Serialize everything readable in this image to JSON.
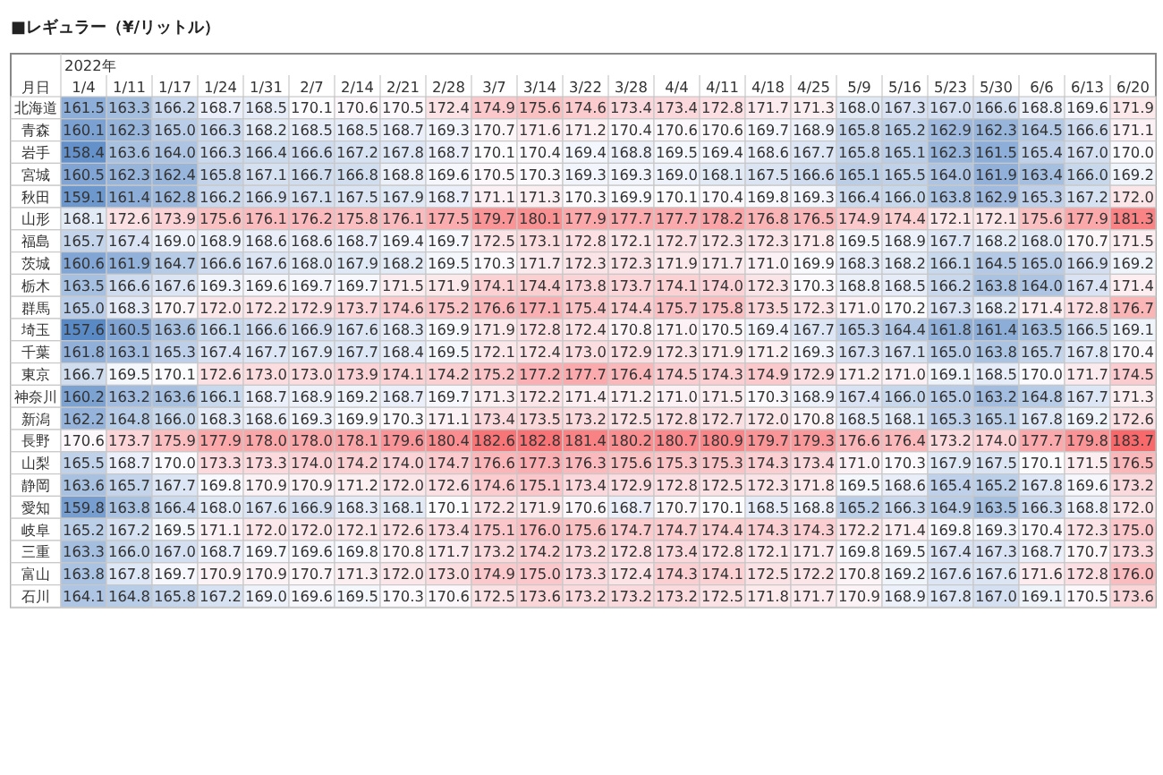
{
  "chart_data": {
    "type": "heatmap",
    "title": "■レギュラー（¥/リットル）",
    "xlabel": "2022年",
    "ylabel": "月日",
    "data_labels": true,
    "categories": [
      "1/4",
      "1/11",
      "1/17",
      "1/24",
      "1/31",
      "2/7",
      "2/14",
      "2/21",
      "2/28",
      "3/7",
      "3/14",
      "3/22",
      "3/28",
      "4/4",
      "4/11",
      "4/18",
      "4/25",
      "5/9",
      "5/16",
      "5/23",
      "5/30",
      "6/6",
      "6/13",
      "6/20"
    ],
    "y_categories": [
      "北海道",
      "青森",
      "岩手",
      "宮城",
      "秋田",
      "山形",
      "福島",
      "茨城",
      "栃木",
      "群馬",
      "埼玉",
      "千葉",
      "東京",
      "神奈川",
      "新潟",
      "長野",
      "山梨",
      "静岡",
      "愛知",
      "岐阜",
      "三重",
      "富山",
      "石川"
    ],
    "cells": [
      [
        161.5,
        163.3,
        166.2,
        168.7,
        168.5,
        170.1,
        170.6,
        170.5,
        172.4,
        174.9,
        175.6,
        174.6,
        173.4,
        173.4,
        172.8,
        171.7,
        171.3,
        168.0,
        167.3,
        167.0,
        166.6,
        168.8,
        169.6,
        171.9
      ],
      [
        160.1,
        162.3,
        165.0,
        166.3,
        168.2,
        168.5,
        168.5,
        168.7,
        169.3,
        170.7,
        171.6,
        171.2,
        170.4,
        170.6,
        170.6,
        169.7,
        168.9,
        165.8,
        165.2,
        162.9,
        162.3,
        164.5,
        166.6,
        171.1
      ],
      [
        158.4,
        163.6,
        164.0,
        166.3,
        166.4,
        166.6,
        167.2,
        167.8,
        168.7,
        170.1,
        170.4,
        169.4,
        168.8,
        169.5,
        169.4,
        168.6,
        167.7,
        165.8,
        165.1,
        162.3,
        161.5,
        165.4,
        167.0,
        170.0
      ],
      [
        160.5,
        162.3,
        162.4,
        165.8,
        167.1,
        166.7,
        166.8,
        168.8,
        169.6,
        170.5,
        170.3,
        169.3,
        169.3,
        169.0,
        168.1,
        167.5,
        166.6,
        165.1,
        165.5,
        164.0,
        161.9,
        163.4,
        166.0,
        169.2
      ],
      [
        159.1,
        161.4,
        162.8,
        166.2,
        166.9,
        167.1,
        167.5,
        167.9,
        168.7,
        171.1,
        171.3,
        170.3,
        169.9,
        170.1,
        170.4,
        169.8,
        169.3,
        166.4,
        166.0,
        163.8,
        162.9,
        165.3,
        167.2,
        172.0
      ],
      [
        168.1,
        172.6,
        173.9,
        175.6,
        176.1,
        176.2,
        175.8,
        176.1,
        177.5,
        179.7,
        180.1,
        177.9,
        177.7,
        177.7,
        178.2,
        176.8,
        176.5,
        174.9,
        174.4,
        172.1,
        172.1,
        175.6,
        177.9,
        181.3
      ],
      [
        165.7,
        167.4,
        169.0,
        168.9,
        168.6,
        168.6,
        168.7,
        169.4,
        169.7,
        172.5,
        173.1,
        172.8,
        172.1,
        172.7,
        172.3,
        172.3,
        171.8,
        169.5,
        168.9,
        167.7,
        168.2,
        168.0,
        170.7,
        171.5
      ],
      [
        160.6,
        161.9,
        164.7,
        166.6,
        167.6,
        168.0,
        167.9,
        168.2,
        169.5,
        170.3,
        171.7,
        172.3,
        172.3,
        171.9,
        171.7,
        171.0,
        169.9,
        168.3,
        168.2,
        166.1,
        164.5,
        165.0,
        166.9,
        169.2
      ],
      [
        163.5,
        166.6,
        167.6,
        169.3,
        169.6,
        169.7,
        169.7,
        171.5,
        171.9,
        174.1,
        174.4,
        173.8,
        173.7,
        174.1,
        174.0,
        172.3,
        170.3,
        168.8,
        168.5,
        166.2,
        163.8,
        164.0,
        167.4,
        171.4
      ],
      [
        165.0,
        168.3,
        170.7,
        172.0,
        172.2,
        172.9,
        173.7,
        174.6,
        175.2,
        176.6,
        177.1,
        175.4,
        174.4,
        175.7,
        175.8,
        173.5,
        172.3,
        171.0,
        170.2,
        167.3,
        168.2,
        171.4,
        172.8,
        176.7
      ],
      [
        157.6,
        160.5,
        163.6,
        166.1,
        166.6,
        166.9,
        167.6,
        168.3,
        169.9,
        171.9,
        172.8,
        172.4,
        170.8,
        171.0,
        170.5,
        169.4,
        167.7,
        165.3,
        164.4,
        161.8,
        161.4,
        163.5,
        166.5,
        169.1
      ],
      [
        161.8,
        163.1,
        165.3,
        167.4,
        167.7,
        167.9,
        167.7,
        168.4,
        169.5,
        172.1,
        172.4,
        173.0,
        172.9,
        172.3,
        171.9,
        171.2,
        169.3,
        167.3,
        167.1,
        165.0,
        163.8,
        165.7,
        167.8,
        170.4
      ],
      [
        166.7,
        169.5,
        170.1,
        172.6,
        173.0,
        173.0,
        173.9,
        174.1,
        174.2,
        175.2,
        177.2,
        177.7,
        176.4,
        174.5,
        174.3,
        174.9,
        172.9,
        171.2,
        171.0,
        169.1,
        168.5,
        170.0,
        171.7,
        174.5
      ],
      [
        160.2,
        163.2,
        163.6,
        166.1,
        168.7,
        168.9,
        169.2,
        168.7,
        169.7,
        171.3,
        172.2,
        171.4,
        171.2,
        171.0,
        171.5,
        170.3,
        168.9,
        167.4,
        166.0,
        165.0,
        163.2,
        164.8,
        167.7,
        171.3
      ],
      [
        162.2,
        164.8,
        166.0,
        168.3,
        168.6,
        169.3,
        169.9,
        170.3,
        171.1,
        173.4,
        173.5,
        173.2,
        172.5,
        172.8,
        172.7,
        172.0,
        170.8,
        168.5,
        168.1,
        165.3,
        165.1,
        167.8,
        169.2,
        172.6
      ],
      [
        170.6,
        173.7,
        175.9,
        177.9,
        178.0,
        178.0,
        178.1,
        179.6,
        180.4,
        182.6,
        182.8,
        181.4,
        180.2,
        180.7,
        180.9,
        179.7,
        179.3,
        176.6,
        176.4,
        173.2,
        174.0,
        177.7,
        179.8,
        183.7
      ],
      [
        165.5,
        168.7,
        170.0,
        173.3,
        173.3,
        174.0,
        174.2,
        174.0,
        174.7,
        176.6,
        177.3,
        176.3,
        175.6,
        175.3,
        175.3,
        174.3,
        173.4,
        171.0,
        170.3,
        167.9,
        167.5,
        170.1,
        171.5,
        176.5
      ],
      [
        163.6,
        165.7,
        167.7,
        169.8,
        170.9,
        170.9,
        171.2,
        172.0,
        172.6,
        174.6,
        175.1,
        173.4,
        172.9,
        172.8,
        172.5,
        172.3,
        171.8,
        169.5,
        168.6,
        165.4,
        165.2,
        167.8,
        169.6,
        173.2
      ],
      [
        159.8,
        163.8,
        166.4,
        168.0,
        167.6,
        166.9,
        168.3,
        168.1,
        170.1,
        172.2,
        171.9,
        170.6,
        168.7,
        170.7,
        170.1,
        168.5,
        168.8,
        165.2,
        166.3,
        164.9,
        163.5,
        166.3,
        168.8,
        172.0
      ],
      [
        165.2,
        167.2,
        169.5,
        171.1,
        172.0,
        172.0,
        172.1,
        172.6,
        173.4,
        175.1,
        176.0,
        175.6,
        174.7,
        174.7,
        174.4,
        174.3,
        174.3,
        172.2,
        171.4,
        169.8,
        169.3,
        170.4,
        172.3,
        175.0
      ],
      [
        163.3,
        166.0,
        167.0,
        168.7,
        169.7,
        169.6,
        169.8,
        170.8,
        171.7,
        173.2,
        174.2,
        173.2,
        172.8,
        173.4,
        172.8,
        172.1,
        171.7,
        169.8,
        169.5,
        167.4,
        167.3,
        168.7,
        170.7,
        173.3
      ],
      [
        163.8,
        167.8,
        169.7,
        170.9,
        170.9,
        170.7,
        171.3,
        172.0,
        173.0,
        174.9,
        175.0,
        173.3,
        172.4,
        174.3,
        174.1,
        172.5,
        172.2,
        170.8,
        169.2,
        167.6,
        167.6,
        171.6,
        172.8,
        176.0
      ],
      [
        164.1,
        164.8,
        165.8,
        167.2,
        169.0,
        169.6,
        169.5,
        170.3,
        170.6,
        172.5,
        173.6,
        173.2,
        173.2,
        173.2,
        172.5,
        171.8,
        171.7,
        170.9,
        168.9,
        167.8,
        167.0,
        169.1,
        170.5,
        173.6
      ]
    ],
    "cell_labels": [
      [
        "161.5",
        "163.3",
        "166.2",
        "168.7",
        "168.5",
        "170.1",
        "170.6",
        "170.5",
        "172.4",
        "174.9",
        "175.6",
        "174.6",
        "173.4",
        "173.4",
        "172.8",
        "171.7",
        "171.3",
        "168.0",
        "167.3",
        "167.0",
        "166.6",
        "168.8",
        "169.6",
        "171.9"
      ],
      [
        "160.1",
        "162.3",
        "165.0",
        "166.3",
        "168.2",
        "168.5",
        "168.5",
        "168.7",
        "169.3",
        "170.7",
        "171.6",
        "171.2",
        "170.4",
        "170.6",
        "170.6",
        "169.7",
        "168.9",
        "165.8",
        "165.2",
        "162.9",
        "162.3",
        "164.5",
        "166.6",
        "171.1"
      ],
      [
        "158.4",
        "163.6",
        "164.0",
        "166.3",
        "166.4",
        "166.6",
        "167.2",
        "167.8",
        "168.7",
        "170.1",
        "170.4",
        "169.4",
        "168.8",
        "169.5",
        "169.4",
        "168.6",
        "167.7",
        "165.8",
        "165.1",
        "162.3",
        "161.5",
        "165.4",
        "167.0",
        "170.0"
      ],
      [
        "160.5",
        "162.3",
        "162.4",
        "165.8",
        "167.1",
        "166.7",
        "166.8",
        "168.8",
        "169.6",
        "170.5",
        "170.3",
        "169.3",
        "169.3",
        "169.0",
        "168.1",
        "167.5",
        "166.6",
        "165.1",
        "165.5",
        "164.0",
        "161.9",
        "163.4",
        "166.0",
        "169.2"
      ],
      [
        "159.1",
        "161.4",
        "162.8",
        "166.2",
        "166.9",
        "167.1",
        "167.5",
        "167.9",
        "168.7",
        "171.1",
        "171.3",
        "170.3",
        "169.9",
        "170.1",
        "170.4",
        "169.8",
        "169.3",
        "166.4",
        "166.0",
        "163.8",
        "162.9",
        "165.3",
        "167.2",
        "172.0"
      ],
      [
        "168.1",
        "172.6",
        "173.9",
        "175.6",
        "176.1",
        "176.2",
        "175.8",
        "176.1",
        "177.5",
        "179.7",
        "180.1",
        "177.9",
        "177.7",
        "177.7",
        "178.2",
        "176.8",
        "176.5",
        "174.9",
        "174.4",
        "172.1",
        "172.1",
        "175.6",
        "177.9",
        "181.3"
      ],
      [
        "165.7",
        "167.4",
        "169.0",
        "168.9",
        "168.6",
        "168.6",
        "168.7",
        "169.4",
        "169.7",
        "172.5",
        "173.1",
        "172.8",
        "172.1",
        "172.7",
        "172.3",
        "172.3",
        "171.8",
        "169.5",
        "168.9",
        "167.7",
        "168.2",
        "168.0",
        "170.7",
        "171.5"
      ],
      [
        "160.6",
        "161.9",
        "164.7",
        "166.6",
        "167.6",
        "168.0",
        "167.9",
        "168.2",
        "169.5",
        "170.3",
        "171.7",
        "172.3",
        "172.3",
        "171.9",
        "171.7",
        "171.0",
        "169.9",
        "168.3",
        "168.2",
        "166.1",
        "164.5",
        "165.0",
        "166.9",
        "169.2"
      ],
      [
        "163.5",
        "166.6",
        "167.6",
        "169.3",
        "169.6",
        "169.7",
        "169.7",
        "171.5",
        "171.9",
        "174.1",
        "174.4",
        "173.8",
        "173.7",
        "174.1",
        "174.0",
        "172.3",
        "170.3",
        "168.8",
        "168.5",
        "166.2",
        "163.8",
        "164.0",
        "167.4",
        "171.4"
      ],
      [
        "165.0",
        "168.3",
        "170.7",
        "172.0",
        "172.2",
        "172.9",
        "173.7",
        "174.6",
        "175.2",
        "176.6",
        "177.1",
        "175.4",
        "174.4",
        "175.7",
        "175.8",
        "173.5",
        "172.3",
        "171.0",
        "170.2",
        "167.3",
        "168.2",
        "171.4",
        "172.8",
        "176.7"
      ],
      [
        "157.6",
        "160.5",
        "163.6",
        "166.1",
        "166.6",
        "166.9",
        "167.6",
        "168.3",
        "169.9",
        "171.9",
        "172.8",
        "172.4",
        "170.8",
        "171.0",
        "170.5",
        "169.4",
        "167.7",
        "165.3",
        "164.4",
        "161.8",
        "161.4",
        "163.5",
        "166.5",
        "169.1"
      ],
      [
        "161.8",
        "163.1",
        "165.3",
        "167.4",
        "167.7",
        "167.9",
        "167.7",
        "168.4",
        "169.5",
        "172.1",
        "172.4",
        "173.0",
        "172.9",
        "172.3",
        "171.9",
        "171.2",
        "169.3",
        "167.3",
        "167.1",
        "165.0",
        "163.8",
        "165.7",
        "167.8",
        "170.4"
      ],
      [
        "166.7",
        "169.5",
        "170.1",
        "172.6",
        "173.0",
        "173.0",
        "173.9",
        "174.1",
        "174.2",
        "175.2",
        "177.2",
        "177.7",
        "176.4",
        "174.5",
        "174.3",
        "174.9",
        "172.9",
        "171.2",
        "171.0",
        "169.1",
        "168.5",
        "170.0",
        "171.7",
        "174.5"
      ],
      [
        "160.2",
        "163.2",
        "163.6",
        "166.1",
        "168.7",
        "168.9",
        "169.2",
        "168.7",
        "169.7",
        "171.3",
        "172.2",
        "171.4",
        "171.2",
        "171.0",
        "171.5",
        "170.3",
        "168.9",
        "167.4",
        "166.0",
        "165.0",
        "163.2",
        "164.8",
        "167.7",
        "171.3"
      ],
      [
        "162.2",
        "164.8",
        "166.0",
        "168.3",
        "168.6",
        "169.3",
        "169.9",
        "170.3",
        "171.1",
        "173.4",
        "173.5",
        "173.2",
        "172.5",
        "172.8",
        "172.7",
        "172.0",
        "170.8",
        "168.5",
        "168.1",
        "165.3",
        "165.1",
        "167.8",
        "169.2",
        "172.6"
      ],
      [
        "170.6",
        "173.7",
        "175.9",
        "177.9",
        "178.0",
        "178.0",
        "178.1",
        "179.6",
        "180.4",
        "182.6",
        "182.8",
        "181.4",
        "180.2",
        "180.7",
        "180.9",
        "179.7",
        "179.3",
        "176.6",
        "176.4",
        "173.2",
        "174.0",
        "177.7",
        "179.8",
        "183.7"
      ],
      [
        "165.5",
        "168.7",
        "170.0",
        "173.3",
        "173.3",
        "174.0",
        "174.2",
        "174.0",
        "174.7",
        "176.6",
        "177.3",
        "176.3",
        "175.6",
        "175.3",
        "175.3",
        "174.3",
        "173.4",
        "171.0",
        "170.3",
        "167.9",
        "167.5",
        "170.1",
        "171.5",
        "176.5"
      ],
      [
        "163.6",
        "165.7",
        "167.7",
        "169.8",
        "170.9",
        "170.9",
        "171.2",
        "172.0",
        "172.6",
        "174.6",
        "175.1",
        "173.4",
        "172.9",
        "172.8",
        "172.5",
        "172.3",
        "171.8",
        "169.5",
        "168.6",
        "165.4",
        "165.2",
        "167.8",
        "169.6",
        "173.2"
      ],
      [
        "159.8",
        "163.8",
        "166.4",
        "168.0",
        "167.6",
        "166.9",
        "168.3",
        "168.1",
        "170.1",
        "172.2",
        "171.9",
        "170.6",
        "168.7",
        "170.7",
        "170.1",
        "168.5",
        "168.8",
        "165.2",
        "166.3",
        "164.9",
        "163.5",
        "166.3",
        "168.8",
        "172.0"
      ],
      [
        "165.2",
        "167.2",
        "169.5",
        "171.1",
        "172.0",
        "172.0",
        "172.1",
        "172.6",
        "173.4",
        "175.1",
        "176.0",
        "175.6",
        "174.7",
        "174.7",
        "174.4",
        "174.3",
        "174.3",
        "172.2",
        "171.4",
        "169.8",
        "169.3",
        "170.4",
        "172.3",
        "175.0"
      ],
      [
        "163.3",
        "166.0",
        "167.0",
        "168.7",
        "169.7",
        "169.6",
        "169.8",
        "170.8",
        "171.7",
        "173.2",
        "174.2",
        "173.2",
        "172.8",
        "173.4",
        "172.8",
        "172.1",
        "171.7",
        "169.8",
        "169.5",
        "167.4",
        "167.3",
        "168.7",
        "170.7",
        "173.3"
      ],
      [
        "163.8",
        "167.8",
        "169.7",
        "170.9",
        "170.9",
        "170.7",
        "171.3",
        "172.0",
        "173.0",
        "174.9",
        "175.0",
        "173.3",
        "172.4",
        "174.3",
        "174.1",
        "172.5",
        "172.2",
        "170.8",
        "169.2",
        "167.6",
        "167.6",
        "171.6",
        "172.8",
        "176.0"
      ],
      [
        "164.1",
        "164.8",
        "165.8",
        "167.2",
        "169.0",
        "169.6",
        "169.5",
        "170.3",
        "170.6",
        "172.5",
        "173.6",
        "173.2",
        "173.2",
        "173.2",
        "172.5",
        "171.8",
        "171.7",
        "170.9",
        "168.9",
        "167.8",
        "167.0",
        "169.1",
        "170.5",
        "173.6"
      ]
    ]
  }
}
